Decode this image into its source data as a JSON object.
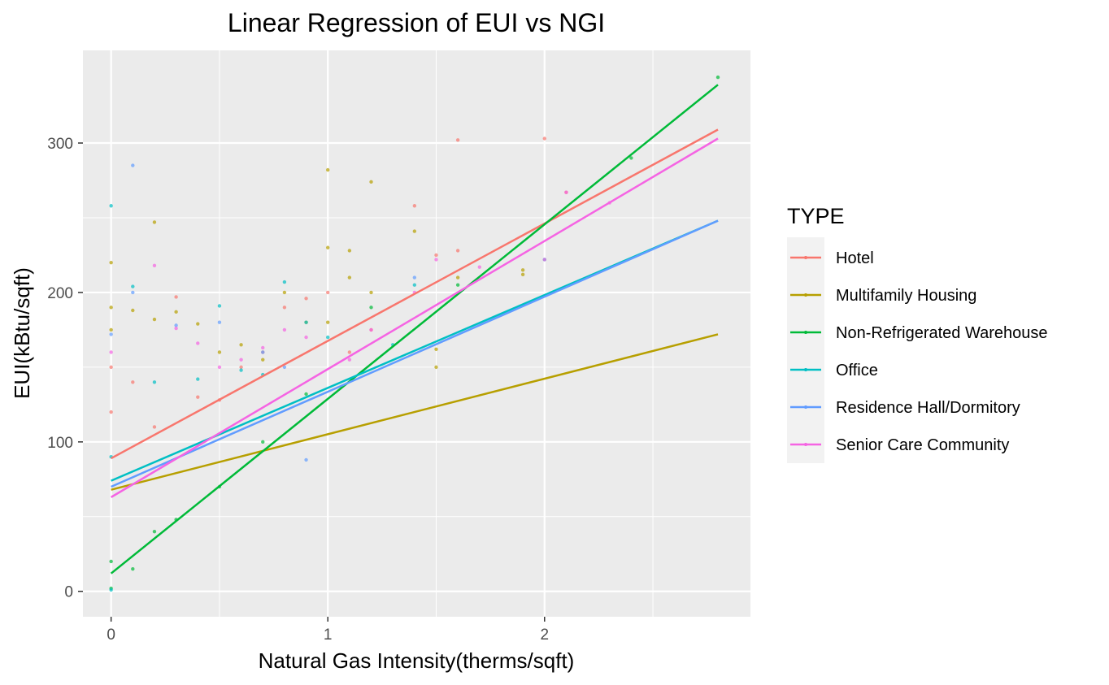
{
  "chart_data": {
    "type": "scatter",
    "title": "Linear Regression of EUI vs NGI",
    "xlabel": "Natural Gas Intensity(therms/sqft)",
    "ylabel": "EUI(kBtu/sqft)",
    "xlim": [
      -0.13,
      2.95
    ],
    "ylim": [
      -17,
      362
    ],
    "x_ticks": [
      0,
      1,
      2
    ],
    "x_tick_labels": [
      "0",
      "1",
      "2"
    ],
    "y_ticks": [
      0,
      100,
      200,
      300
    ],
    "y_tick_labels": [
      "0",
      "100",
      "200",
      "300"
    ],
    "grid": true,
    "legend_title": "TYPE",
    "legend_position": "right",
    "series": [
      {
        "name": "Hotel",
        "color": "#F8766D",
        "line": {
          "x": [
            0,
            2.8
          ],
          "y": [
            89,
            309
          ]
        },
        "points": [
          [
            0,
            120
          ],
          [
            0,
            150
          ],
          [
            0.1,
            140
          ],
          [
            0.2,
            110
          ],
          [
            0.3,
            197
          ],
          [
            0.4,
            130
          ],
          [
            0.5,
            128
          ],
          [
            0.6,
            150
          ],
          [
            0.7,
            160
          ],
          [
            0.8,
            190
          ],
          [
            0.9,
            196
          ],
          [
            1,
            200
          ],
          [
            1.1,
            160
          ],
          [
            1.2,
            175
          ],
          [
            1.4,
            258
          ],
          [
            1.5,
            225
          ],
          [
            1.6,
            302
          ],
          [
            1.6,
            228
          ],
          [
            2,
            303
          ],
          [
            2.1,
            267
          ]
        ]
      },
      {
        "name": "Multifamily Housing",
        "color": "#B79F00",
        "line": {
          "x": [
            0,
            2.8
          ],
          "y": [
            68,
            172
          ]
        },
        "points": [
          [
            0,
            220
          ],
          [
            0,
            190
          ],
          [
            0,
            175
          ],
          [
            0.1,
            188
          ],
          [
            0.2,
            247
          ],
          [
            0.2,
            182
          ],
          [
            0.3,
            187
          ],
          [
            0.4,
            179
          ],
          [
            0.5,
            160
          ],
          [
            0.6,
            165
          ],
          [
            0.7,
            155
          ],
          [
            0.8,
            200
          ],
          [
            0.9,
            180
          ],
          [
            1,
            282
          ],
          [
            1,
            230
          ],
          [
            1,
            180
          ],
          [
            1.1,
            228
          ],
          [
            1.1,
            210
          ],
          [
            1.2,
            274
          ],
          [
            1.2,
            200
          ],
          [
            1.4,
            241
          ],
          [
            1.5,
            150
          ],
          [
            1.5,
            162
          ],
          [
            1.6,
            210
          ],
          [
            1.9,
            212
          ],
          [
            1.9,
            215
          ]
        ]
      },
      {
        "name": "Non-Refrigerated Warehouse",
        "color": "#00BA38",
        "line": {
          "x": [
            0,
            2.8
          ],
          "y": [
            12,
            339
          ]
        },
        "points": [
          [
            0,
            2
          ],
          [
            0,
            20
          ],
          [
            0.1,
            15
          ],
          [
            0.2,
            40
          ],
          [
            0.3,
            48
          ],
          [
            0.5,
            70
          ],
          [
            0.7,
            100
          ],
          [
            0.9,
            132
          ],
          [
            1.2,
            190
          ],
          [
            1.6,
            205
          ],
          [
            2.4,
            290
          ],
          [
            2.8,
            344
          ]
        ]
      },
      {
        "name": "Office",
        "color": "#00BFC4",
        "line": {
          "x": [
            0,
            2.8
          ],
          "y": [
            74,
            248
          ]
        },
        "points": [
          [
            0,
            258
          ],
          [
            0,
            1
          ],
          [
            0,
            90
          ],
          [
            0.1,
            204
          ],
          [
            0.2,
            140
          ],
          [
            0.4,
            142
          ],
          [
            0.5,
            191
          ],
          [
            0.6,
            148
          ],
          [
            0.7,
            145
          ],
          [
            0.8,
            207
          ],
          [
            0.9,
            180
          ],
          [
            1,
            170
          ],
          [
            1.3,
            165
          ],
          [
            1.4,
            205
          ],
          [
            2,
            222
          ]
        ]
      },
      {
        "name": "Residence Hall/Dormitory",
        "color": "#619CFF",
        "line": {
          "x": [
            0,
            2.8
          ],
          "y": [
            70,
            248
          ]
        },
        "points": [
          [
            0,
            172
          ],
          [
            0.1,
            285
          ],
          [
            0.1,
            200
          ],
          [
            0.3,
            178
          ],
          [
            0.5,
            180
          ],
          [
            0.7,
            160
          ],
          [
            0.8,
            150
          ],
          [
            0.9,
            88
          ],
          [
            1.4,
            210
          ]
        ]
      },
      {
        "name": "Senior Care Community",
        "color": "#F564E3",
        "line": {
          "x": [
            0,
            2.8
          ],
          "y": [
            63,
            303
          ]
        },
        "points": [
          [
            0,
            160
          ],
          [
            0.2,
            218
          ],
          [
            0.3,
            176
          ],
          [
            0.4,
            166
          ],
          [
            0.5,
            150
          ],
          [
            0.6,
            155
          ],
          [
            0.7,
            163
          ],
          [
            0.8,
            175
          ],
          [
            0.9,
            170
          ],
          [
            1.1,
            155
          ],
          [
            1.2,
            175
          ],
          [
            1.4,
            200
          ],
          [
            1.5,
            222
          ],
          [
            1.7,
            217
          ],
          [
            2,
            222
          ],
          [
            2.1,
            267
          ],
          [
            2.3,
            260
          ]
        ]
      }
    ]
  }
}
